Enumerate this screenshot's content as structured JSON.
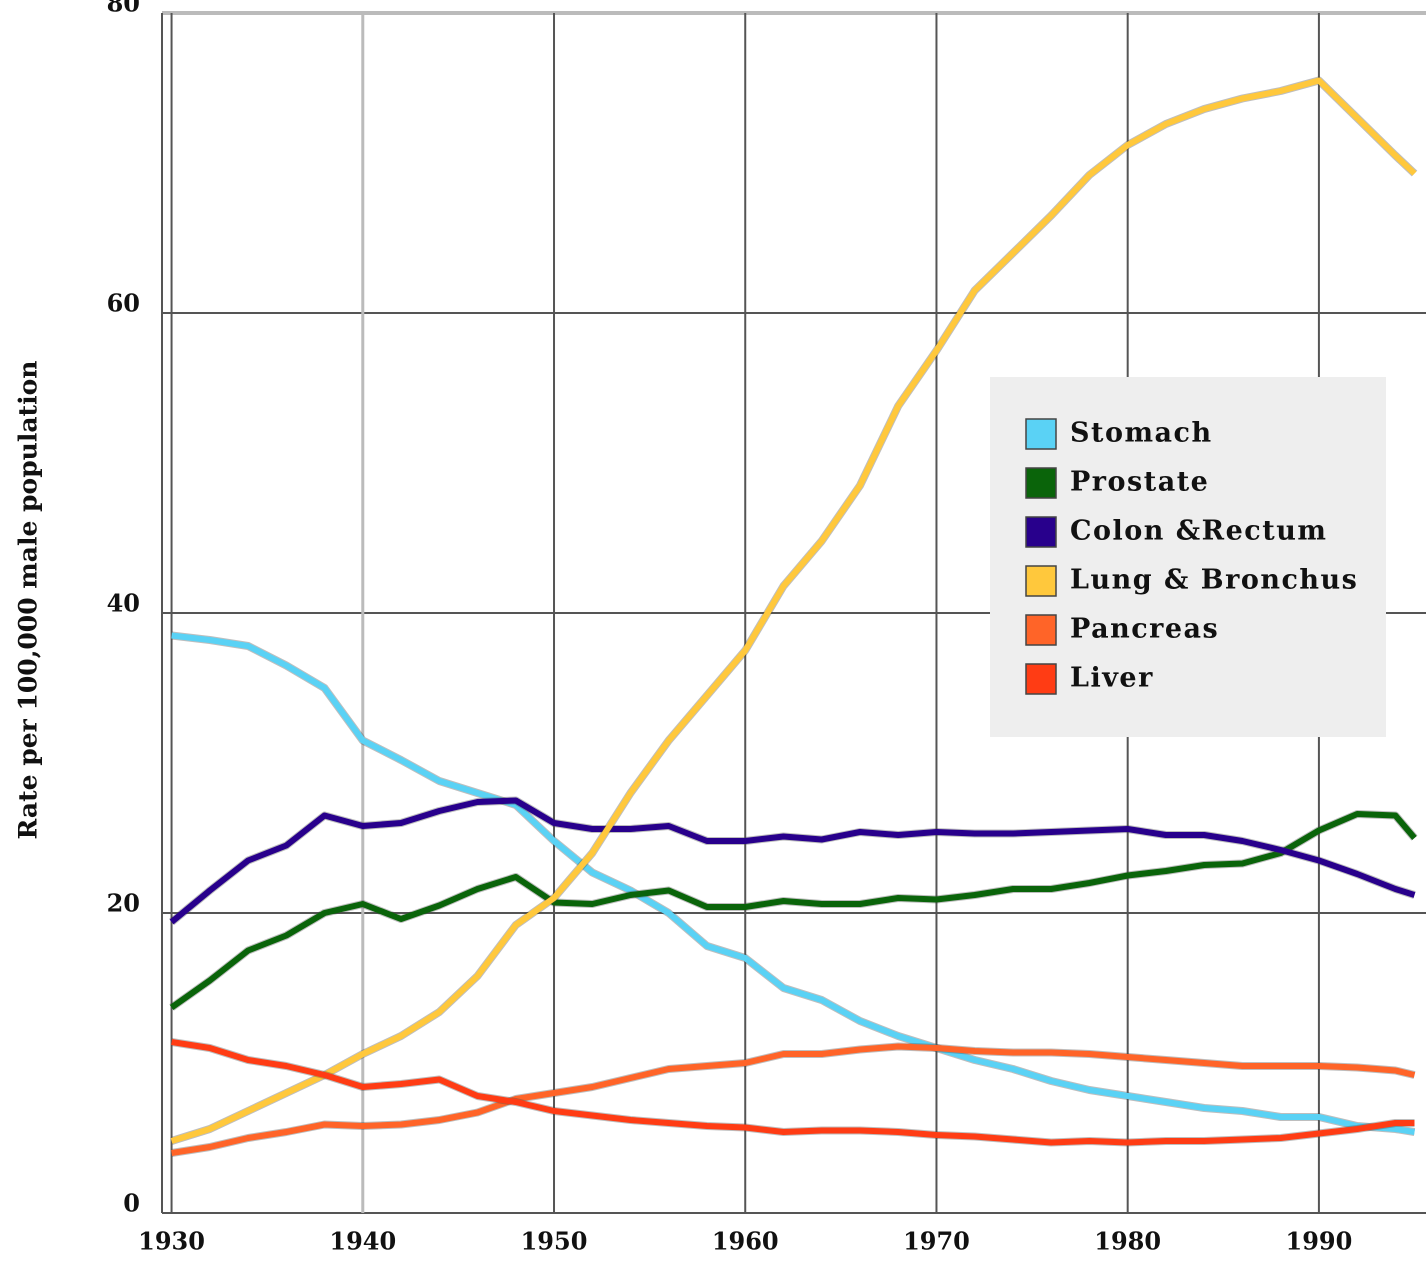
{
  "chart_data": {
    "type": "line",
    "y_label": "Rate per 100,000 male population",
    "x": [
      1930,
      1932,
      1934,
      1936,
      1938,
      1940,
      1942,
      1944,
      1946,
      1948,
      1950,
      1952,
      1954,
      1956,
      1958,
      1960,
      1962,
      1964,
      1966,
      1968,
      1970,
      1972,
      1974,
      1976,
      1978,
      1980,
      1982,
      1984,
      1986,
      1988,
      1990,
      1992,
      1994,
      1995
    ],
    "xlim": [
      1929.5,
      1995.6
    ],
    "xticks": [
      1930,
      1940,
      1950,
      1960,
      1970,
      1980,
      1990
    ],
    "ylim": [
      0,
      80
    ],
    "yticks": [
      0,
      20,
      40,
      60,
      80
    ],
    "grid": true,
    "series": [
      {
        "name": "Stomach",
        "color": "#5ad2f5",
        "values": [
          38.5,
          38.2,
          37.8,
          36.5,
          35,
          31.5,
          30.2,
          28.8,
          28,
          27.2,
          24.8,
          22.7,
          21.5,
          20,
          17.8,
          17,
          15,
          14.2,
          12.8,
          11.8,
          11,
          10.2,
          9.6,
          8.8,
          8.2,
          7.8,
          7.4,
          7,
          6.8,
          6.4,
          6.4,
          5.8,
          5.6,
          5.4
        ]
      },
      {
        "name": "Prostate",
        "color": "#0a640a",
        "values": [
          13.7,
          15.5,
          17.5,
          18.5,
          20,
          20.6,
          19.6,
          20.5,
          21.6,
          22.4,
          20.7,
          20.6,
          21.2,
          21.5,
          20.4,
          20.4,
          20.8,
          20.6,
          20.6,
          21,
          20.9,
          21.2,
          21.6,
          21.6,
          22,
          22.5,
          22.8,
          23.2,
          23.3,
          24,
          25.5,
          26.6,
          26.5,
          25
        ]
      },
      {
        "name": "Colon &Rectum",
        "color": "#28008c",
        "values": [
          19.4,
          21.5,
          23.5,
          24.5,
          26.5,
          25.8,
          26,
          26.8,
          27.4,
          27.5,
          26,
          25.6,
          25.6,
          25.8,
          24.8,
          24.8,
          25.1,
          24.9,
          25.4,
          25.2,
          25.4,
          25.3,
          25.3,
          25.4,
          25.5,
          25.6,
          25.2,
          25.2,
          24.8,
          24.2,
          23.5,
          22.6,
          21.6,
          21.2
        ]
      },
      {
        "name": "Lung & Bronchus",
        "color": "#ffc83c",
        "values": [
          4.8,
          5.6,
          6.8,
          8,
          9.2,
          10.6,
          11.8,
          13.4,
          15.8,
          19.2,
          21,
          24,
          28,
          31.5,
          34.5,
          37.5,
          41.8,
          44.8,
          48.5,
          53.8,
          57.5,
          61.5,
          64,
          66.5,
          69.2,
          71.2,
          72.6,
          73.6,
          74.3,
          74.8,
          75.5,
          73,
          70.5,
          69.3
        ]
      },
      {
        "name": "Pancreas",
        "color": "#ff6428",
        "values": [
          4,
          4.4,
          5,
          5.4,
          5.9,
          5.8,
          5.9,
          6.2,
          6.7,
          7.6,
          8,
          8.4,
          9,
          9.6,
          9.8,
          10,
          10.6,
          10.6,
          10.9,
          11.1,
          11,
          10.8,
          10.7,
          10.7,
          10.6,
          10.4,
          10.2,
          10,
          9.8,
          9.8,
          9.8,
          9.7,
          9.5,
          9.2
        ]
      },
      {
        "name": "Liver",
        "color": "#ff3c14",
        "values": [
          11.4,
          11,
          10.2,
          9.8,
          9.2,
          8.4,
          8.6,
          8.9,
          7.8,
          7.4,
          6.8,
          6.5,
          6.2,
          6,
          5.8,
          5.7,
          5.4,
          5.5,
          5.5,
          5.4,
          5.2,
          5.1,
          4.9,
          4.7,
          4.8,
          4.7,
          4.8,
          4.8,
          4.9,
          5,
          5.3,
          5.6,
          6,
          6
        ]
      }
    ]
  }
}
